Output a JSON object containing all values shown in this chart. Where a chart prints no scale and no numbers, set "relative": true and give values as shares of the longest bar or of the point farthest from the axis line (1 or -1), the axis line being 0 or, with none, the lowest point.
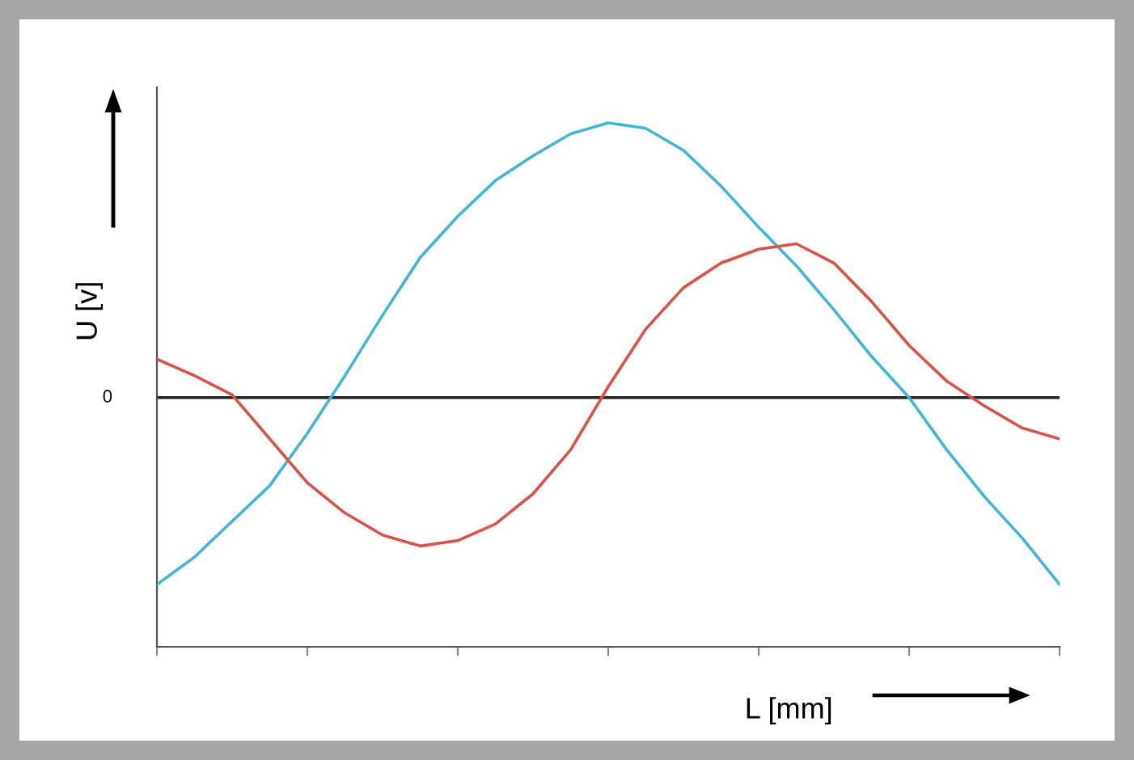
{
  "chart_data": {
    "type": "line",
    "relative": true,
    "xlabel": "L [mm]",
    "ylabel": "U [v]",
    "annotations": [
      "0"
    ],
    "categories": [
      null,
      null,
      null,
      null,
      null,
      null,
      null,
      null,
      null,
      null,
      null,
      null,
      null,
      null,
      null,
      null,
      null,
      null,
      null,
      null,
      null,
      null,
      null,
      null,
      null
    ],
    "series": [
      {
        "color": "#45b5d6",
        "values": [
          -0.68,
          -0.58,
          -0.45,
          -0.32,
          -0.13,
          0.08,
          0.3,
          0.51,
          0.66,
          0.79,
          0.88,
          0.96,
          1.0,
          0.98,
          0.9,
          0.77,
          0.62,
          0.48,
          0.32,
          0.15,
          0,
          -0.19,
          -0.36,
          -0.51,
          -0.68
        ]
      },
      {
        "color": "#d9534a",
        "values": [
          0.14,
          0.08,
          0.01,
          -0.15,
          -0.31,
          -0.42,
          -0.5,
          -0.54,
          -0.52,
          -0.46,
          -0.35,
          -0.19,
          0.04,
          0.25,
          0.4,
          0.49,
          0.54,
          0.56,
          0.49,
          0.35,
          0.19,
          0.06,
          -0.03,
          -0.11,
          -0.15
        ]
      }
    ]
  }
}
